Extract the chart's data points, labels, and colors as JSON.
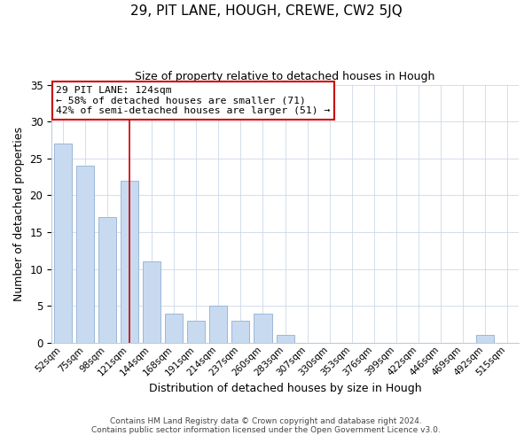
{
  "title": "29, PIT LANE, HOUGH, CREWE, CW2 5JQ",
  "subtitle": "Size of property relative to detached houses in Hough",
  "xlabel": "Distribution of detached houses by size in Hough",
  "ylabel": "Number of detached properties",
  "bin_labels": [
    "52sqm",
    "75sqm",
    "98sqm",
    "121sqm",
    "144sqm",
    "168sqm",
    "191sqm",
    "214sqm",
    "237sqm",
    "260sqm",
    "283sqm",
    "307sqm",
    "330sqm",
    "353sqm",
    "376sqm",
    "399sqm",
    "422sqm",
    "446sqm",
    "469sqm",
    "492sqm",
    "515sqm"
  ],
  "bar_values": [
    27,
    24,
    17,
    22,
    11,
    4,
    3,
    5,
    3,
    4,
    1,
    0,
    0,
    0,
    0,
    0,
    0,
    0,
    0,
    1,
    0
  ],
  "bar_color": "#c8daf0",
  "bar_edge_color": "#9ab8d8",
  "highlight_index": 3,
  "highlight_line_color": "#cc0000",
  "annotation_title": "29 PIT LANE: 124sqm",
  "annotation_line1": "← 58% of detached houses are smaller (71)",
  "annotation_line2": "42% of semi-detached houses are larger (51) →",
  "annotation_box_edge": "#cc0000",
  "ylim": [
    0,
    35
  ],
  "yticks": [
    0,
    5,
    10,
    15,
    20,
    25,
    30,
    35
  ],
  "footer1": "Contains HM Land Registry data © Crown copyright and database right 2024.",
  "footer2": "Contains public sector information licensed under the Open Government Licence v3.0."
}
